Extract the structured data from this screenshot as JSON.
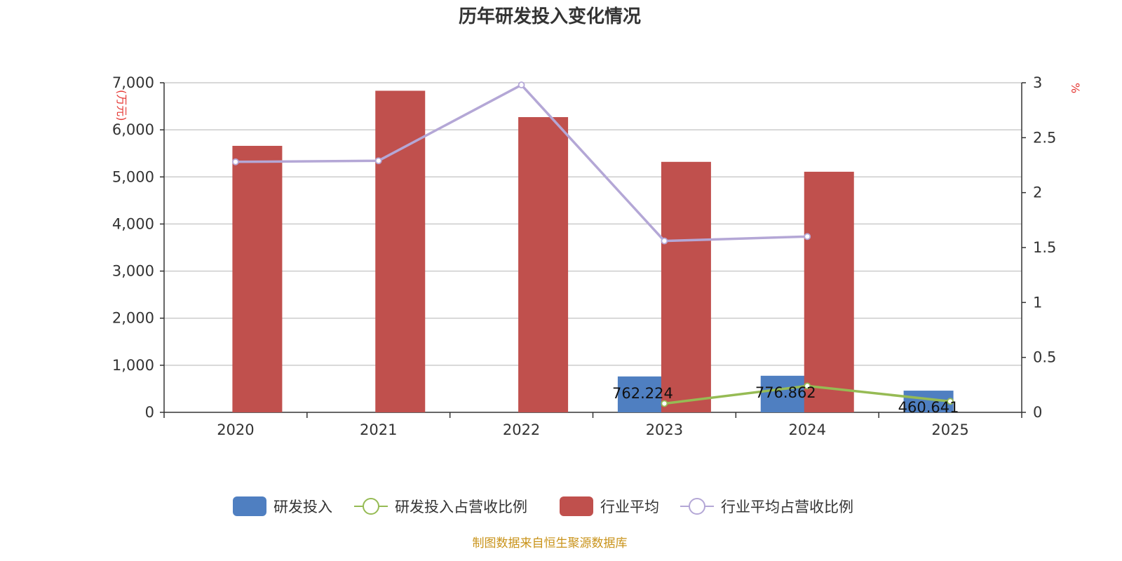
{
  "chart_data": {
    "type": "bar",
    "title": "历年研发投入变化情况",
    "categories": [
      "2020",
      "2021",
      "2022",
      "2023",
      "2024",
      "2025"
    ],
    "y_left": {
      "unit": "(万元)",
      "min": 0,
      "max": 7000,
      "ticks": [
        0,
        1000,
        2000,
        3000,
        4000,
        5000,
        6000,
        7000
      ],
      "tick_labels": [
        "0",
        "1,000",
        "2,000",
        "3,000",
        "4,000",
        "5,000",
        "6,000",
        "7,000"
      ]
    },
    "y_right": {
      "unit": "%",
      "min": 0,
      "max": 3,
      "ticks": [
        0,
        0.5,
        1,
        1.5,
        2,
        2.5,
        3
      ],
      "tick_labels": [
        "0",
        "0.5",
        "1",
        "1.5",
        "2",
        "2.5",
        "3"
      ]
    },
    "grid": true,
    "legend_position": "bottom",
    "series": [
      {
        "name": "研发投入",
        "kind": "bar",
        "axis": "left",
        "color": "#4f7fc1",
        "values": [
          null,
          null,
          null,
          762.224,
          776.862,
          460.641
        ],
        "labels": [
          "",
          "",
          "",
          "762.224",
          "776.862",
          "460.641"
        ]
      },
      {
        "name": "研发投入占营收比例",
        "kind": "line",
        "axis": "right",
        "color": "#96bb54",
        "values": [
          null,
          null,
          null,
          0.08,
          0.24,
          0.1
        ]
      },
      {
        "name": "行业平均",
        "kind": "bar",
        "axis": "left",
        "color": "#c0504d",
        "values": [
          5660,
          6830,
          6270,
          5320,
          5110,
          null
        ]
      },
      {
        "name": "行业平均占营收比例",
        "kind": "line",
        "axis": "right",
        "color": "#b4a7d6",
        "values": [
          2.28,
          2.29,
          2.98,
          1.56,
          1.6,
          null
        ]
      }
    ],
    "source": "制图数据来自恒生聚源数据库"
  }
}
